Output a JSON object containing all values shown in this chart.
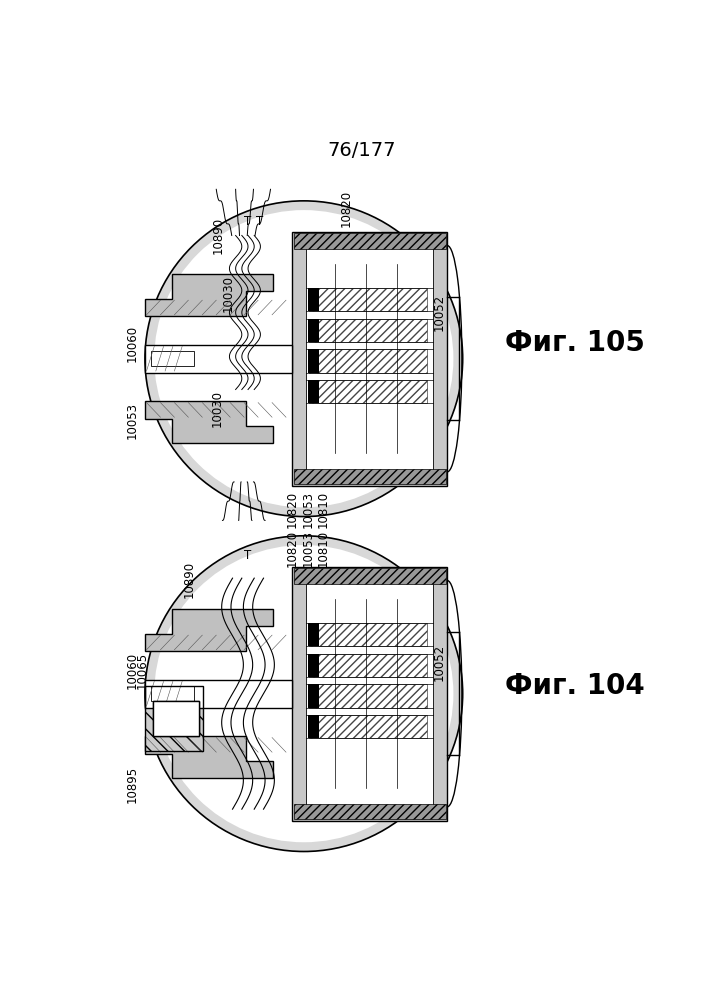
{
  "title": "76/177",
  "fig_top_label": "Фиг. 105",
  "fig_bottom_label": "Фиг. 104",
  "background_color": "#ffffff",
  "line_color": "#000000",
  "title_fontsize": 14,
  "label_fontsize": 8.5,
  "fig_label_fontsize": 20
}
